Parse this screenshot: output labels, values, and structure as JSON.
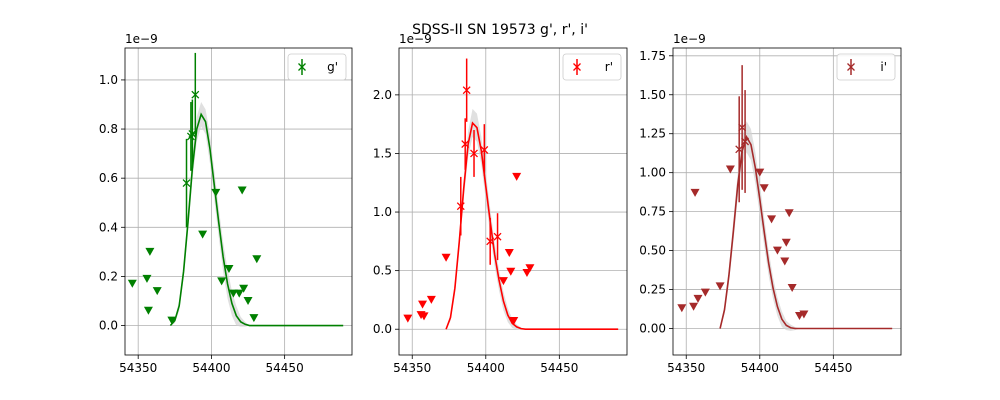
{
  "figure": {
    "title": "SDSS-II SN 19573  g', r', i'"
  },
  "chart_data": [
    {
      "type": "scatter",
      "panel": "g",
      "offset_label": "1e−9",
      "xlim": [
        54341,
        54496
      ],
      "ylim": [
        -0.12,
        1.13
      ],
      "xticks": [
        54350,
        54400,
        54450
      ],
      "yticks": [
        0.0,
        0.2,
        0.4,
        0.6,
        0.8,
        1.0
      ],
      "ytick_labels": [
        "0.0",
        "0.2",
        "0.4",
        "0.6",
        "0.8",
        "1.0"
      ],
      "grid": true,
      "legend": {
        "label": "g'",
        "position": "top-right"
      },
      "color": "#008000",
      "detections": [
        {
          "x": 54383,
          "y": 0.58,
          "err": 0.18
        },
        {
          "x": 54386,
          "y": 0.77,
          "err": 0.14
        },
        {
          "x": 54387,
          "y": 0.78,
          "err": 0.14
        },
        {
          "x": 54389,
          "y": 0.94,
          "err": 0.17
        }
      ],
      "upper_limits": [
        {
          "x": 54346,
          "y": 0.17
        },
        {
          "x": 54356,
          "y": 0.19
        },
        {
          "x": 54357,
          "y": 0.06
        },
        {
          "x": 54358,
          "y": 0.3
        },
        {
          "x": 54363,
          "y": 0.14
        },
        {
          "x": 54373,
          "y": 0.02
        },
        {
          "x": 54394,
          "y": 0.37
        },
        {
          "x": 54403,
          "y": 0.54
        },
        {
          "x": 54407,
          "y": 0.18
        },
        {
          "x": 54412,
          "y": 0.23
        },
        {
          "x": 54415,
          "y": 0.13
        },
        {
          "x": 54419,
          "y": 0.13
        },
        {
          "x": 54421,
          "y": 0.55
        },
        {
          "x": 54422,
          "y": 0.15
        },
        {
          "x": 54425,
          "y": 0.1
        },
        {
          "x": 54429,
          "y": 0.03
        },
        {
          "x": 54431,
          "y": 0.27
        }
      ],
      "model": {
        "x": [
          54372,
          54375,
          54378,
          54381,
          54384,
          54387,
          54390,
          54393,
          54396,
          54399,
          54402,
          54405,
          54408,
          54411,
          54414,
          54417,
          54420,
          54423,
          54426,
          54430,
          54440,
          54450,
          54460,
          54470,
          54480,
          54490
        ],
        "y": [
          0.0,
          0.02,
          0.08,
          0.22,
          0.42,
          0.64,
          0.8,
          0.86,
          0.83,
          0.72,
          0.57,
          0.42,
          0.28,
          0.17,
          0.09,
          0.04,
          0.015,
          0.005,
          0.0,
          0.0,
          0.0,
          0.0,
          0.0,
          0.0,
          0.0,
          0.0
        ],
        "band": [
          0.0,
          0.01,
          0.02,
          0.03,
          0.04,
          0.05,
          0.05,
          0.05,
          0.05,
          0.06,
          0.06,
          0.06,
          0.06,
          0.06,
          0.05,
          0.04,
          0.02,
          0.01,
          0.0,
          0.0,
          0.0,
          0.0,
          0.0,
          0.0,
          0.0,
          0.0
        ]
      }
    },
    {
      "type": "scatter",
      "panel": "r",
      "offset_label": "1e−9",
      "xlim": [
        54341,
        54496
      ],
      "ylim": [
        -0.22,
        2.4
      ],
      "xticks": [
        54350,
        54400,
        54450
      ],
      "yticks": [
        0.0,
        0.5,
        1.0,
        1.5,
        2.0
      ],
      "ytick_labels": [
        "0.0",
        "0.5",
        "1.0",
        "1.5",
        "2.0"
      ],
      "grid": true,
      "legend": {
        "label": "r'",
        "position": "top-right"
      },
      "color": "#ff0000",
      "detections": [
        {
          "x": 54383,
          "y": 1.05,
          "err": 0.25
        },
        {
          "x": 54386,
          "y": 1.58,
          "err": 0.22
        },
        {
          "x": 54387,
          "y": 2.04,
          "err": 0.27
        },
        {
          "x": 54392,
          "y": 1.5,
          "err": 0.2
        },
        {
          "x": 54399,
          "y": 1.53,
          "err": 0.22
        },
        {
          "x": 54403,
          "y": 0.75,
          "err": 0.2
        },
        {
          "x": 54408,
          "y": 0.79,
          "err": 0.2
        }
      ],
      "upper_limits": [
        {
          "x": 54347,
          "y": 0.09
        },
        {
          "x": 54356,
          "y": 0.12
        },
        {
          "x": 54357,
          "y": 0.21
        },
        {
          "x": 54358,
          "y": 0.11
        },
        {
          "x": 54363,
          "y": 0.25
        },
        {
          "x": 54373,
          "y": 0.61
        },
        {
          "x": 54412,
          "y": 0.41
        },
        {
          "x": 54416,
          "y": 0.65
        },
        {
          "x": 54417,
          "y": 0.49
        },
        {
          "x": 54419,
          "y": 0.07
        },
        {
          "x": 54421,
          "y": 1.3
        },
        {
          "x": 54428,
          "y": 0.48
        },
        {
          "x": 54430,
          "y": 0.52
        }
      ],
      "model": {
        "x": [
          54373,
          54376,
          54379,
          54382,
          54385,
          54388,
          54391,
          54394,
          54397,
          54400,
          54403,
          54406,
          54409,
          54412,
          54415,
          54418,
          54421,
          54424,
          54427,
          54430,
          54440,
          54450,
          54460,
          54470,
          54480,
          54490
        ],
        "y": [
          0.0,
          0.1,
          0.35,
          0.75,
          1.2,
          1.58,
          1.76,
          1.72,
          1.52,
          1.22,
          0.92,
          0.64,
          0.42,
          0.24,
          0.12,
          0.05,
          0.02,
          0.005,
          0.0,
          0.0,
          0.0,
          0.0,
          0.0,
          0.0,
          0.0,
          0.0
        ],
        "band": [
          0.0,
          0.03,
          0.05,
          0.07,
          0.09,
          0.11,
          0.12,
          0.12,
          0.12,
          0.12,
          0.11,
          0.1,
          0.09,
          0.08,
          0.06,
          0.04,
          0.02,
          0.01,
          0.0,
          0.0,
          0.0,
          0.0,
          0.0,
          0.0,
          0.0,
          0.0
        ]
      }
    },
    {
      "type": "scatter",
      "panel": "i",
      "offset_label": "1e−9",
      "xlim": [
        54341,
        54496
      ],
      "ylim": [
        -0.17,
        1.8
      ],
      "xticks": [
        54350,
        54400,
        54450
      ],
      "yticks": [
        0.0,
        0.25,
        0.5,
        0.75,
        1.0,
        1.25,
        1.5,
        1.75
      ],
      "ytick_labels": [
        "0.00",
        "0.25",
        "0.50",
        "0.75",
        "1.00",
        "1.25",
        "1.50",
        "1.75"
      ],
      "grid": true,
      "legend": {
        "label": "i'",
        "position": "top-right"
      },
      "color": "#a52a2a",
      "detections": [
        {
          "x": 54386,
          "y": 1.15,
          "err": 0.34
        },
        {
          "x": 54388,
          "y": 1.29,
          "err": 0.4
        },
        {
          "x": 54390,
          "y": 1.2,
          "err": 0.33
        }
      ],
      "upper_limits": [
        {
          "x": 54347,
          "y": 0.13
        },
        {
          "x": 54355,
          "y": 0.14
        },
        {
          "x": 54356,
          "y": 0.87
        },
        {
          "x": 54358,
          "y": 0.19
        },
        {
          "x": 54363,
          "y": 0.23
        },
        {
          "x": 54373,
          "y": 0.27
        },
        {
          "x": 54380,
          "y": 1.02
        },
        {
          "x": 54400,
          "y": 1.0
        },
        {
          "x": 54403,
          "y": 0.9
        },
        {
          "x": 54408,
          "y": 0.7
        },
        {
          "x": 54412,
          "y": 0.5
        },
        {
          "x": 54417,
          "y": 0.43
        },
        {
          "x": 54418,
          "y": 0.55
        },
        {
          "x": 54420,
          "y": 0.74
        },
        {
          "x": 54422,
          "y": 0.26
        },
        {
          "x": 54427,
          "y": 0.08
        },
        {
          "x": 54430,
          "y": 0.09
        }
      ],
      "model": {
        "x": [
          54373,
          54376,
          54379,
          54382,
          54385,
          54388,
          54391,
          54394,
          54397,
          54400,
          54403,
          54406,
          54409,
          54412,
          54415,
          54418,
          54421,
          54424,
          54427,
          54430,
          54440,
          54450,
          54460,
          54470,
          54480,
          54490
        ],
        "y": [
          0.0,
          0.12,
          0.34,
          0.62,
          0.92,
          1.14,
          1.23,
          1.18,
          1.03,
          0.83,
          0.62,
          0.42,
          0.26,
          0.14,
          0.06,
          0.02,
          0.005,
          0.0,
          0.0,
          0.0,
          0.0,
          0.0,
          0.0,
          0.0,
          0.0,
          0.0
        ],
        "band": [
          0.0,
          0.03,
          0.05,
          0.07,
          0.08,
          0.09,
          0.1,
          0.1,
          0.1,
          0.1,
          0.09,
          0.08,
          0.07,
          0.06,
          0.05,
          0.03,
          0.02,
          0.01,
          0.0,
          0.0,
          0.0,
          0.0,
          0.0,
          0.0,
          0.0,
          0.0
        ]
      }
    }
  ]
}
